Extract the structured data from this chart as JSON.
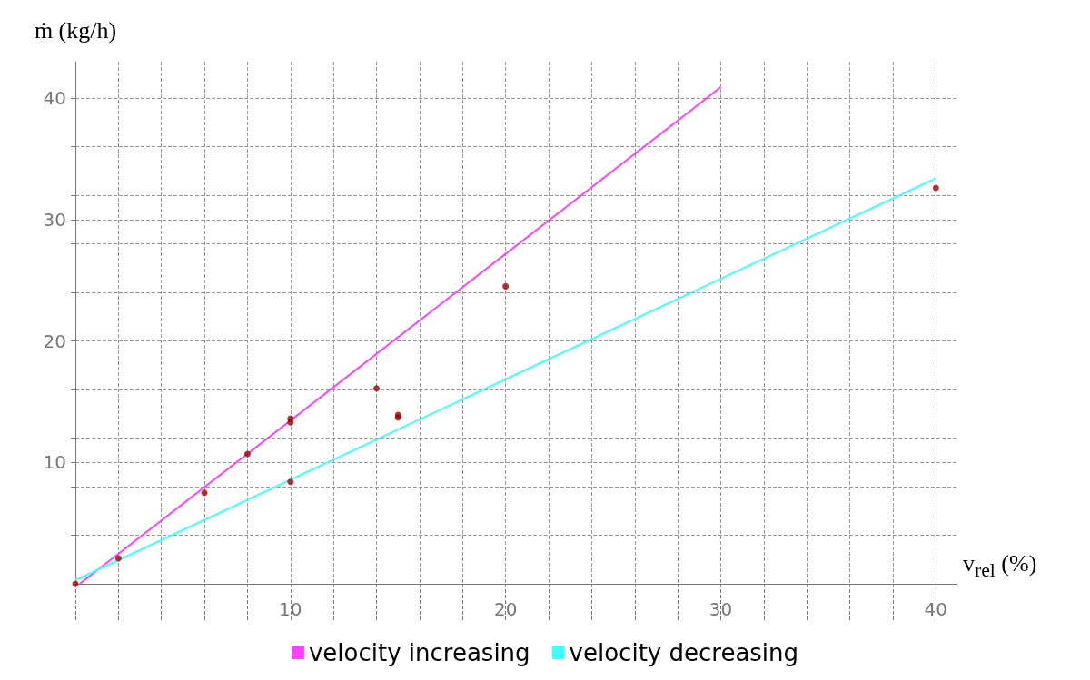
{
  "chart_data": {
    "type": "scatter",
    "xlabel": "v$_{rel}$ (%)",
    "ylabel": "ṁ (kg/h)",
    "xlim": [
      0,
      41
    ],
    "ylim": [
      0,
      43
    ],
    "xticks": [
      {
        "value": 0,
        "label": null
      },
      {
        "value": 2,
        "label": null
      },
      {
        "value": 4,
        "label": null
      },
      {
        "value": 6,
        "label": null
      },
      {
        "value": 8,
        "label": null
      },
      10,
      {
        "value": 12,
        "label": null
      },
      {
        "value": 14,
        "label": null
      },
      {
        "value": 16,
        "label": null
      },
      {
        "value": 18,
        "label": null
      },
      20,
      {
        "value": 22,
        "label": null
      },
      {
        "value": 24,
        "label": null
      },
      {
        "value": 26,
        "label": null
      },
      {
        "value": 28,
        "label": null
      },
      30,
      {
        "value": 32,
        "label": null
      },
      {
        "value": 34,
        "label": null
      },
      {
        "value": 36,
        "label": null
      },
      {
        "value": 38,
        "label": null
      },
      40
    ],
    "yticks": [
      {
        "value": 4,
        "label": null
      },
      {
        "value": 8,
        "label": null
      },
      10,
      {
        "value": 12,
        "label": null
      },
      {
        "value": 16,
        "label": null
      },
      20,
      {
        "value": 24,
        "label": null
      },
      {
        "value": 28,
        "label": null
      },
      30,
      {
        "value": 32,
        "label": null
      },
      {
        "value": 36,
        "label": null
      },
      40
    ],
    "grid": true,
    "legend": "bottom",
    "marker": "circle",
    "series": [
      {
        "type": "line",
        "name": "velocity increasing",
        "color": "#ff40ff",
        "x": [
          0.2,
          30
        ],
        "values": [
          0,
          40.9
        ],
        "marker": "none"
      },
      {
        "type": "line",
        "name": "velocity decreasing",
        "color": "#40ffff",
        "x": [
          0,
          40
        ],
        "values": [
          0.3,
          33.4
        ],
        "marker": "none"
      },
      {
        "color": "#a00000",
        "x": [
          0,
          2,
          6,
          8,
          10,
          10,
          10,
          14,
          15,
          15,
          20,
          40
        ],
        "values": [
          0,
          2.1,
          7.5,
          10.7,
          13.3,
          13.6,
          8.4,
          16.1,
          13.7,
          13.9,
          24.5,
          32.6
        ]
      }
    ]
  }
}
